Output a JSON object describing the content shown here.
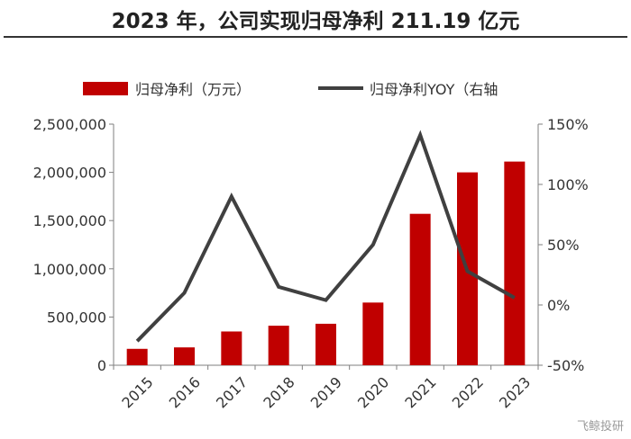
{
  "page": {
    "title": "2023 年，公司实现归母净利 211.19 亿元",
    "watermark": "飞鲸投研"
  },
  "chart_data": {
    "type": "bar",
    "title": "2023 年，公司实现归母净利 211.19 亿元",
    "categories": [
      "2015",
      "2016",
      "2017",
      "2018",
      "2019",
      "2020",
      "2021",
      "2022",
      "2023"
    ],
    "series": [
      {
        "name": "归母净利（万元）",
        "type": "bar",
        "axis": "left",
        "color": "#c00000",
        "values": [
          170000,
          185000,
          350000,
          410000,
          430000,
          650000,
          1570000,
          2000000,
          2111900
        ]
      },
      {
        "name": "归母净利YOY（右轴",
        "type": "line",
        "axis": "right",
        "color": "#404040",
        "values": [
          -0.3,
          0.1,
          0.9,
          0.15,
          0.04,
          0.5,
          1.41,
          0.28,
          0.06
        ]
      }
    ],
    "left_axis": {
      "ylim": [
        0,
        2500000
      ],
      "ticks": [
        0,
        500000,
        1000000,
        1500000,
        2000000,
        2500000
      ],
      "tick_labels": [
        "0",
        "500,000",
        "1,000,000",
        "1,500,000",
        "2,000,000",
        "2,500,000"
      ]
    },
    "right_axis": {
      "ylim": [
        -0.5,
        1.5
      ],
      "ticks": [
        -0.5,
        0,
        0.5,
        1.0,
        1.5
      ],
      "tick_labels": [
        "-50%",
        "0%",
        "50%",
        "100%",
        "150%"
      ]
    },
    "legend_position": "top",
    "grid": false
  }
}
